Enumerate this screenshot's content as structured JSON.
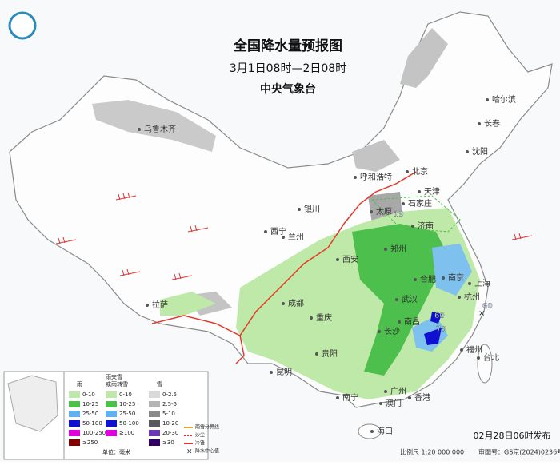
{
  "header": {
    "title": "全国降水量预报图",
    "subtitle": "3月1日08时—2日08时",
    "issuer": "中央气象台"
  },
  "cities": [
    "哈尔滨",
    "长春",
    "沈阳",
    "乌鲁木齐",
    "呼和浩特",
    "北京",
    "天津",
    "石家庄",
    "太原",
    "银川",
    "济南",
    "西宁",
    "兰州",
    "郑州",
    "西安",
    "合肥",
    "南京",
    "上海",
    "拉萨",
    "成都",
    "武汉",
    "杭州",
    "重庆",
    "南昌",
    "长沙",
    "福州",
    "贵阳",
    "台北",
    "昆明",
    "广州",
    "南宁",
    "香港",
    "澳门",
    "海口"
  ],
  "precip_centers": [
    19,
    60,
    73,
    60
  ],
  "legend": {
    "rain": {
      "title": "雨",
      "items": [
        "0-10",
        "10-25",
        "25-50",
        "50-100",
        "100-250",
        "≥250"
      ]
    },
    "sleet": {
      "title": [
        "雨夹雪",
        "或雨转雪"
      ],
      "items": [
        "0-10",
        "10-25",
        "25-50",
        "50-100",
        "≥100"
      ]
    },
    "snow": {
      "title": "雪",
      "items": [
        "0-2.5",
        "2.5-5",
        "5-10",
        "10-20",
        "20-30",
        "≥30"
      ]
    },
    "unit": "单位：毫米",
    "symbols": [
      "雨雪分界线",
      "沙尘",
      "冷锋",
      "降水中心值"
    ]
  },
  "footer": {
    "issued": "02月28日06时发布",
    "scale": "比例尺 1:20 000 000",
    "approval": "审图号：GS京(2024)0236号"
  }
}
